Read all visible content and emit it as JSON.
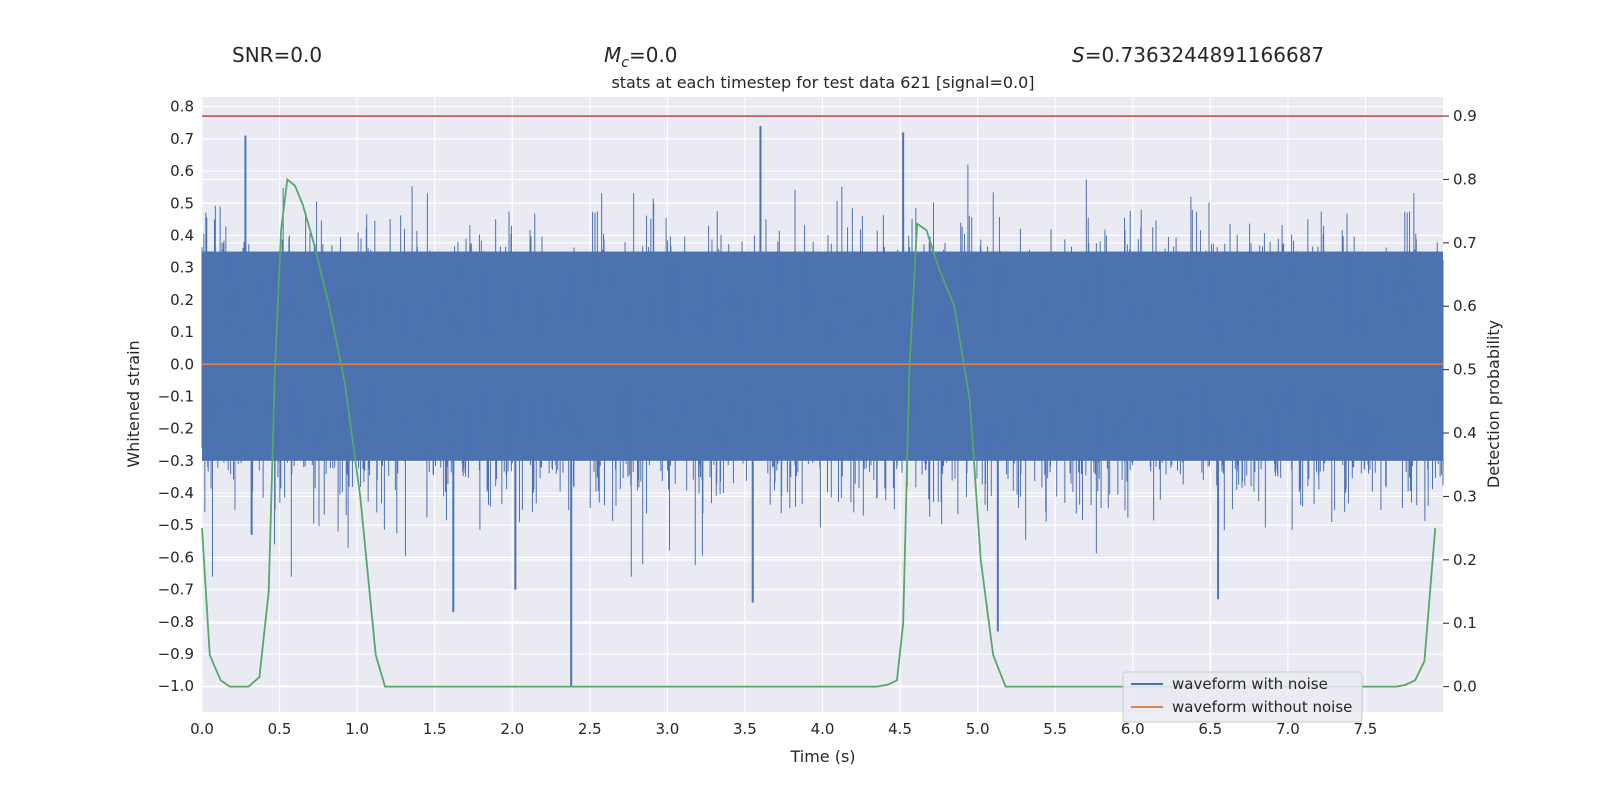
{
  "header": {
    "snr_text": "SNR=0.0",
    "mc_symbol": "M",
    "mc_subscript": "c",
    "mc_value": "=0.0",
    "s_symbol": "S",
    "s_value": "=0.7363244891166687"
  },
  "chart_data": {
    "type": "line",
    "title": "stats at each timestep for test data 621 [signal=0.0]",
    "xlabel": "Time (s)",
    "ylabel": "Whitened strain",
    "y2label": "Detection probability",
    "xlim": [
      0.0,
      8.0
    ],
    "ylim": [
      -1.08,
      0.83
    ],
    "y2lim": [
      -0.04,
      0.93
    ],
    "grid": true,
    "legend_position": "lower right",
    "x_ticks": [
      "0.0",
      "0.5",
      "1.0",
      "1.5",
      "2.0",
      "2.5",
      "3.0",
      "3.5",
      "4.0",
      "4.5",
      "5.0",
      "5.5",
      "6.0",
      "6.5",
      "7.0",
      "7.5"
    ],
    "x_tick_values": [
      0.0,
      0.5,
      1.0,
      1.5,
      2.0,
      2.5,
      3.0,
      3.5,
      4.0,
      4.5,
      5.0,
      5.5,
      6.0,
      6.5,
      7.0,
      7.5
    ],
    "y_ticks": [
      "0.8",
      "0.7",
      "0.6",
      "0.5",
      "0.4",
      "0.3",
      "0.2",
      "0.1",
      "0.0",
      "−0.1",
      "−0.2",
      "−0.3",
      "−0.4",
      "−0.5",
      "−0.6",
      "−0.7",
      "−0.8",
      "−0.9",
      "−1.0"
    ],
    "y_tick_values": [
      0.8,
      0.7,
      0.6,
      0.5,
      0.4,
      0.3,
      0.2,
      0.1,
      0.0,
      -0.1,
      -0.2,
      -0.3,
      -0.4,
      -0.5,
      -0.6,
      -0.7,
      -0.8,
      -0.9,
      -1.0
    ],
    "y2_ticks": [
      "0.9",
      "0.8",
      "0.7",
      "0.6",
      "0.5",
      "0.4",
      "0.3",
      "0.2",
      "0.1",
      "0.0"
    ],
    "y2_tick_values": [
      0.9,
      0.8,
      0.7,
      0.6,
      0.5,
      0.4,
      0.3,
      0.2,
      0.1,
      0.0
    ],
    "series": [
      {
        "name": "waveform with noise",
        "axis": "left",
        "color": "#4c72b0",
        "kind": "noise",
        "band": [
          -0.3,
          0.35
        ],
        "peaks": [
          [
            0.28,
            0.71
          ],
          [
            2.38,
            -1.0
          ],
          [
            0.32,
            -0.53
          ],
          [
            3.6,
            0.74
          ],
          [
            4.52,
            0.72
          ],
          [
            5.13,
            -0.83
          ],
          [
            1.62,
            -0.77
          ],
          [
            6.55,
            -0.73
          ],
          [
            3.55,
            -0.74
          ],
          [
            2.02,
            -0.7
          ]
        ]
      },
      {
        "name": "waveform without noise",
        "axis": "left",
        "color": "#dd8452",
        "x": [
          0.0,
          8.0
        ],
        "y": [
          0.0,
          0.0
        ]
      },
      {
        "axis": "right",
        "color": "#55a868",
        "x": [
          0.0,
          0.05,
          0.12,
          0.18,
          0.25,
          0.3,
          0.37,
          0.43,
          0.47,
          0.51,
          0.55,
          0.6,
          0.65,
          0.72,
          0.82,
          0.92,
          1.02,
          1.12,
          1.18,
          1.25,
          4.35,
          4.42,
          4.48,
          4.52,
          4.56,
          4.61,
          4.67,
          4.75,
          4.85,
          4.95,
          5.02,
          5.1,
          5.18,
          5.25,
          7.7,
          7.76,
          7.82,
          7.88,
          7.95
        ],
        "y": [
          0.25,
          0.05,
          0.01,
          0.0,
          0.0,
          0.0,
          0.015,
          0.15,
          0.5,
          0.72,
          0.8,
          0.79,
          0.76,
          0.7,
          0.6,
          0.48,
          0.3,
          0.05,
          0.0,
          0.0,
          0.0,
          0.003,
          0.01,
          0.1,
          0.5,
          0.73,
          0.72,
          0.66,
          0.6,
          0.45,
          0.2,
          0.05,
          0.0,
          0.0,
          0.0,
          0.003,
          0.01,
          0.04,
          0.25
        ]
      },
      {
        "axis": "right",
        "color": "#c44e52",
        "x": [
          0.0,
          8.0
        ],
        "y": [
          0.9,
          0.9
        ]
      }
    ]
  }
}
